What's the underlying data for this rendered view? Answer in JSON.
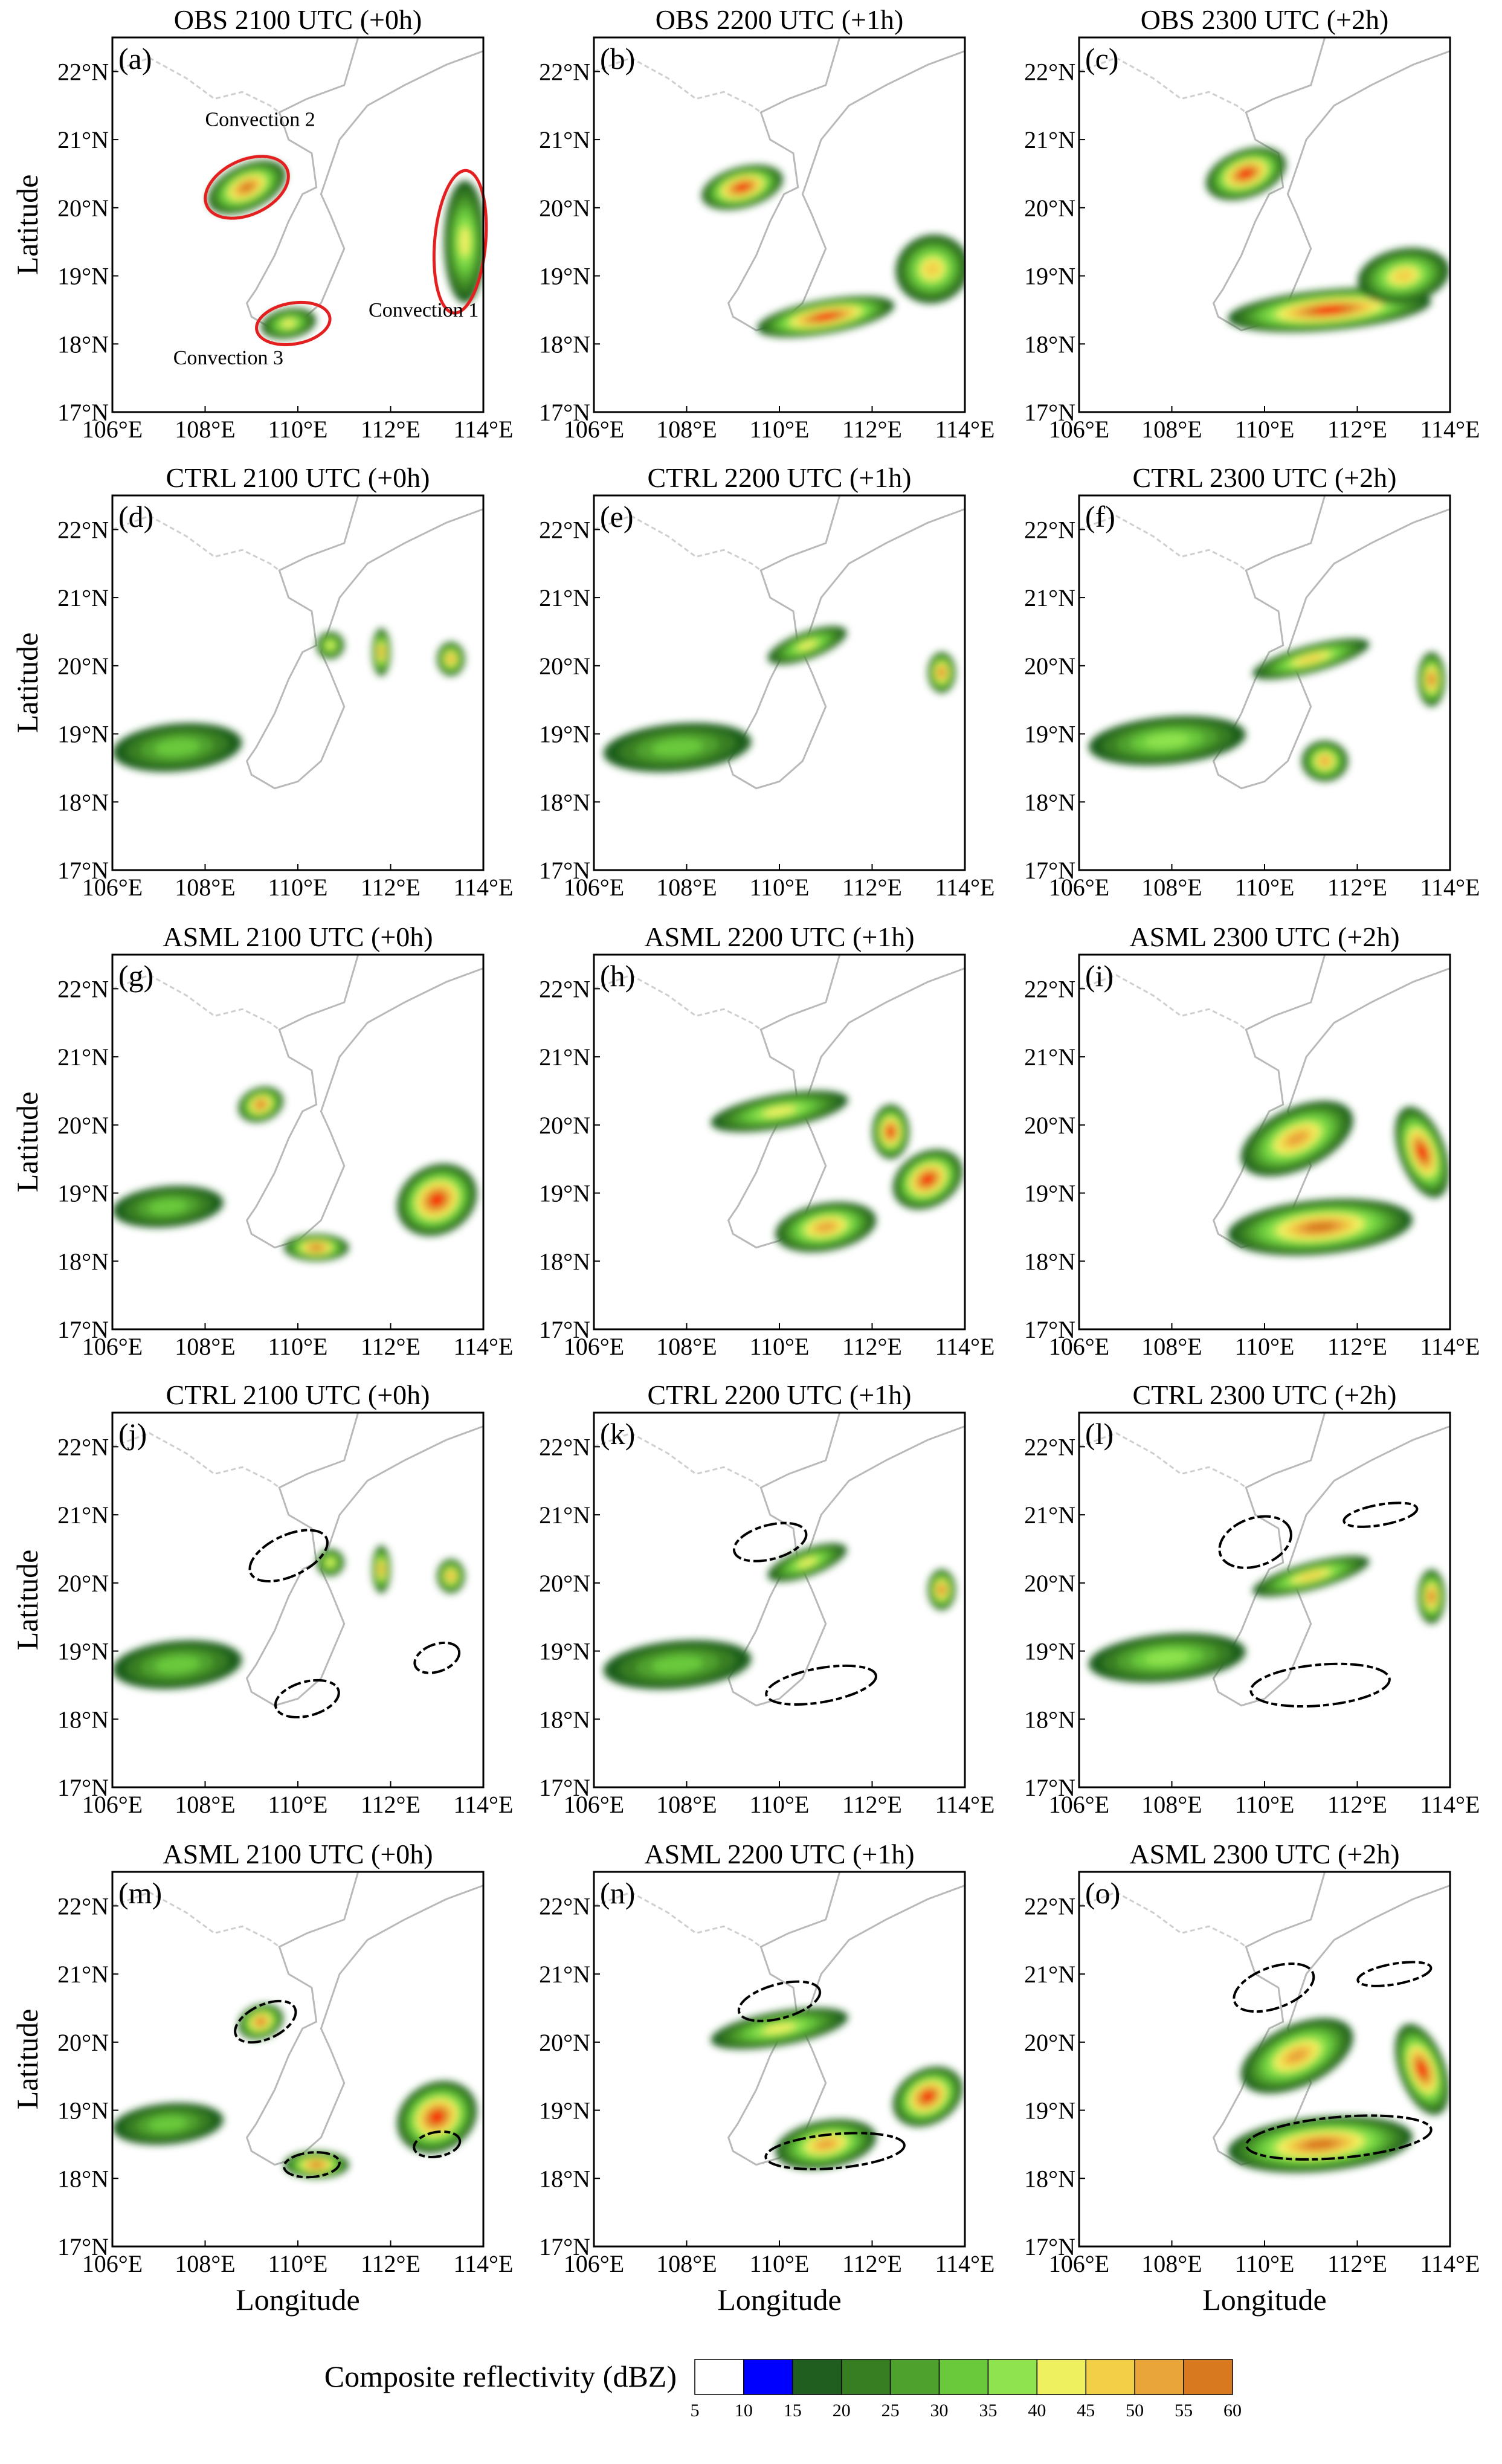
{
  "colorbar": {
    "title": "Composite reflectivity (dBZ)",
    "ticks": [
      "5",
      "10",
      "15",
      "20",
      "25",
      "30",
      "35",
      "40",
      "45",
      "50",
      "55",
      "60"
    ],
    "colors": [
      "#ffffff",
      "#0000ff",
      "#1f5e1f",
      "#377e23",
      "#4fa12d",
      "#69c93b",
      "#8ee34e",
      "#eef060",
      "#f2cf46",
      "#e9a43a",
      "#d8781f",
      "#ff0000",
      "#b83018"
    ]
  },
  "chart_data": {
    "type": "heatmap",
    "variable": "Composite reflectivity (dBZ)",
    "xlabel": "Longitude",
    "ylabel": "Latitude",
    "xlim": [
      106,
      114
    ],
    "ylim": [
      17,
      22.5
    ],
    "x_ticks": [
      "106°E",
      "108°E",
      "110°E",
      "112°E",
      "114°E"
    ],
    "y_ticks": [
      "17°N",
      "18°N",
      "19°N",
      "20°N",
      "21°N",
      "22°N"
    ],
    "panels": [
      {
        "label": "(a)",
        "title": "OBS 2100 UTC (+0h)",
        "annotations": [
          "Convection 2",
          "Convection 1",
          "Convection 3"
        ],
        "echoes": [
          {
            "lon": 108.9,
            "lat": 20.3,
            "rx": 0.9,
            "ry": 0.33,
            "rot": -25,
            "max": 50
          },
          {
            "lon": 113.6,
            "lat": 19.5,
            "rx": 0.45,
            "ry": 0.9,
            "rot": 0,
            "max": 35
          },
          {
            "lon": 109.8,
            "lat": 18.3,
            "rx": 0.6,
            "ry": 0.22,
            "rot": -10,
            "max": 35
          }
        ]
      },
      {
        "label": "(b)",
        "title": "OBS 2200 UTC (+1h)",
        "echoes": [
          {
            "lon": 109.2,
            "lat": 20.3,
            "rx": 0.9,
            "ry": 0.3,
            "rot": -15,
            "max": 55
          },
          {
            "lon": 111.0,
            "lat": 18.4,
            "rx": 1.5,
            "ry": 0.25,
            "rot": -10,
            "max": 55
          },
          {
            "lon": 113.3,
            "lat": 19.1,
            "rx": 0.8,
            "ry": 0.5,
            "rot": -20,
            "max": 40
          }
        ]
      },
      {
        "label": "(c)",
        "title": "OBS 2300 UTC (+2h)",
        "echoes": [
          {
            "lon": 109.6,
            "lat": 20.5,
            "rx": 0.9,
            "ry": 0.35,
            "rot": -20,
            "max": 55
          },
          {
            "lon": 111.4,
            "lat": 18.5,
            "rx": 2.2,
            "ry": 0.3,
            "rot": -5,
            "max": 55
          },
          {
            "lon": 113.0,
            "lat": 19.0,
            "rx": 1.0,
            "ry": 0.4,
            "rot": -10,
            "max": 40
          }
        ]
      },
      {
        "label": "(d)",
        "title": "CTRL 2100 UTC (+0h)",
        "echoes": [
          {
            "lon": 107.4,
            "lat": 18.8,
            "rx": 1.4,
            "ry": 0.35,
            "rot": -5,
            "max": 25
          },
          {
            "lon": 110.7,
            "lat": 20.3,
            "rx": 0.3,
            "ry": 0.2,
            "rot": -20,
            "max": 35
          },
          {
            "lon": 111.8,
            "lat": 20.2,
            "rx": 0.2,
            "ry": 0.35,
            "rot": 0,
            "max": 45
          },
          {
            "lon": 113.3,
            "lat": 20.1,
            "rx": 0.3,
            "ry": 0.25,
            "rot": 0,
            "max": 45
          }
        ]
      },
      {
        "label": "(e)",
        "title": "CTRL 2200 UTC (+1h)",
        "echoes": [
          {
            "lon": 107.8,
            "lat": 18.8,
            "rx": 1.6,
            "ry": 0.35,
            "rot": -5,
            "max": 25
          },
          {
            "lon": 110.6,
            "lat": 20.3,
            "rx": 0.9,
            "ry": 0.2,
            "rot": -20,
            "max": 35
          },
          {
            "lon": 113.5,
            "lat": 19.9,
            "rx": 0.3,
            "ry": 0.3,
            "rot": 0,
            "max": 50
          }
        ]
      },
      {
        "label": "(f)",
        "title": "CTRL 2300 UTC (+2h)",
        "echoes": [
          {
            "lon": 107.9,
            "lat": 18.9,
            "rx": 1.7,
            "ry": 0.35,
            "rot": -5,
            "max": 30
          },
          {
            "lon": 111.0,
            "lat": 20.1,
            "rx": 1.3,
            "ry": 0.2,
            "rot": -15,
            "max": 40
          },
          {
            "lon": 113.6,
            "lat": 19.8,
            "rx": 0.3,
            "ry": 0.4,
            "rot": 0,
            "max": 50
          },
          {
            "lon": 111.3,
            "lat": 18.6,
            "rx": 0.5,
            "ry": 0.3,
            "rot": 0,
            "max": 45
          }
        ]
      },
      {
        "label": "(g)",
        "title": "ASML 2100 UTC (+0h)",
        "echoes": [
          {
            "lon": 107.2,
            "lat": 18.8,
            "rx": 1.2,
            "ry": 0.3,
            "rot": -5,
            "max": 25
          },
          {
            "lon": 109.2,
            "lat": 20.3,
            "rx": 0.5,
            "ry": 0.25,
            "rot": -20,
            "max": 50
          },
          {
            "lon": 110.4,
            "lat": 18.2,
            "rx": 0.7,
            "ry": 0.2,
            "rot": 0,
            "max": 50
          },
          {
            "lon": 113.0,
            "lat": 18.9,
            "rx": 0.9,
            "ry": 0.5,
            "rot": -30,
            "max": 55
          }
        ]
      },
      {
        "label": "(h)",
        "title": "ASML 2200 UTC (+1h)",
        "echoes": [
          {
            "lon": 110.0,
            "lat": 20.2,
            "rx": 1.5,
            "ry": 0.25,
            "rot": -10,
            "max": 35
          },
          {
            "lon": 111.0,
            "lat": 18.5,
            "rx": 1.1,
            "ry": 0.35,
            "rot": -10,
            "max": 45
          },
          {
            "lon": 113.2,
            "lat": 19.2,
            "rx": 0.8,
            "ry": 0.4,
            "rot": -30,
            "max": 55
          },
          {
            "lon": 112.4,
            "lat": 19.9,
            "rx": 0.4,
            "ry": 0.4,
            "rot": 0,
            "max": 55
          }
        ]
      },
      {
        "label": "(i)",
        "title": "ASML 2300 UTC (+2h)",
        "echoes": [
          {
            "lon": 110.7,
            "lat": 19.8,
            "rx": 1.3,
            "ry": 0.45,
            "rot": -25,
            "max": 45
          },
          {
            "lon": 111.2,
            "lat": 18.5,
            "rx": 2.0,
            "ry": 0.4,
            "rot": -5,
            "max": 50
          },
          {
            "lon": 113.4,
            "lat": 19.6,
            "rx": 0.5,
            "ry": 0.7,
            "rot": -20,
            "max": 55
          }
        ]
      },
      {
        "label": "(j)",
        "title": "CTRL 2100 UTC (+0h)",
        "has_contour": true,
        "echoes": [
          {
            "lon": 107.4,
            "lat": 18.8,
            "rx": 1.4,
            "ry": 0.35,
            "rot": -5,
            "max": 25
          },
          {
            "lon": 110.7,
            "lat": 20.3,
            "rx": 0.3,
            "ry": 0.2,
            "rot": -20,
            "max": 35
          },
          {
            "lon": 111.8,
            "lat": 20.2,
            "rx": 0.2,
            "ry": 0.35,
            "rot": 0,
            "max": 45
          },
          {
            "lon": 113.3,
            "lat": 20.1,
            "rx": 0.3,
            "ry": 0.25,
            "rot": 0,
            "max": 45
          }
        ],
        "contours": [
          {
            "lon": 109.8,
            "lat": 20.4,
            "rx": 0.9,
            "ry": 0.3,
            "rot": -25
          },
          {
            "lon": 110.2,
            "lat": 18.3,
            "rx": 0.7,
            "ry": 0.25,
            "rot": -15
          },
          {
            "lon": 113.0,
            "lat": 18.9,
            "rx": 0.5,
            "ry": 0.2,
            "rot": -20
          }
        ]
      },
      {
        "label": "(k)",
        "title": "CTRL 2200 UTC (+1h)",
        "has_contour": true,
        "echoes": [
          {
            "lon": 107.8,
            "lat": 18.8,
            "rx": 1.6,
            "ry": 0.35,
            "rot": -5,
            "max": 25
          },
          {
            "lon": 110.6,
            "lat": 20.3,
            "rx": 0.9,
            "ry": 0.2,
            "rot": -20,
            "max": 35
          },
          {
            "lon": 113.5,
            "lat": 19.9,
            "rx": 0.3,
            "ry": 0.3,
            "rot": 0,
            "max": 50
          }
        ],
        "contours": [
          {
            "lon": 109.8,
            "lat": 20.6,
            "rx": 0.8,
            "ry": 0.25,
            "rot": -15
          },
          {
            "lon": 110.9,
            "lat": 18.5,
            "rx": 1.2,
            "ry": 0.25,
            "rot": -10
          }
        ]
      },
      {
        "label": "(l)",
        "title": "CTRL 2300 UTC (+2h)",
        "has_contour": true,
        "echoes": [
          {
            "lon": 107.9,
            "lat": 18.9,
            "rx": 1.7,
            "ry": 0.35,
            "rot": -5,
            "max": 30
          },
          {
            "lon": 111.0,
            "lat": 20.1,
            "rx": 1.3,
            "ry": 0.2,
            "rot": -15,
            "max": 40
          },
          {
            "lon": 113.6,
            "lat": 19.8,
            "rx": 0.3,
            "ry": 0.4,
            "rot": 0,
            "max": 50
          }
        ],
        "contours": [
          {
            "lon": 109.8,
            "lat": 20.6,
            "rx": 0.8,
            "ry": 0.35,
            "rot": -20
          },
          {
            "lon": 111.2,
            "lat": 18.5,
            "rx": 1.5,
            "ry": 0.3,
            "rot": -5
          },
          {
            "lon": 112.5,
            "lat": 21.0,
            "rx": 0.8,
            "ry": 0.15,
            "rot": -10
          }
        ]
      },
      {
        "label": "(m)",
        "title": "ASML 2100 UTC (+0h)",
        "has_contour": true,
        "echoes": [
          {
            "lon": 107.2,
            "lat": 18.8,
            "rx": 1.2,
            "ry": 0.3,
            "rot": -5,
            "max": 25
          },
          {
            "lon": 109.2,
            "lat": 20.3,
            "rx": 0.5,
            "ry": 0.25,
            "rot": -20,
            "max": 50
          },
          {
            "lon": 110.4,
            "lat": 18.2,
            "rx": 0.7,
            "ry": 0.2,
            "rot": 0,
            "max": 50
          },
          {
            "lon": 113.0,
            "lat": 18.9,
            "rx": 0.9,
            "ry": 0.5,
            "rot": -30,
            "max": 55
          }
        ],
        "contours": [
          {
            "lon": 109.3,
            "lat": 20.3,
            "rx": 0.7,
            "ry": 0.25,
            "rot": -25
          },
          {
            "lon": 110.3,
            "lat": 18.2,
            "rx": 0.6,
            "ry": 0.18,
            "rot": -5
          },
          {
            "lon": 113.0,
            "lat": 18.5,
            "rx": 0.5,
            "ry": 0.18,
            "rot": -10
          }
        ]
      },
      {
        "label": "(n)",
        "title": "ASML 2200 UTC (+1h)",
        "has_contour": true,
        "echoes": [
          {
            "lon": 110.0,
            "lat": 20.2,
            "rx": 1.5,
            "ry": 0.25,
            "rot": -10,
            "max": 35
          },
          {
            "lon": 111.0,
            "lat": 18.5,
            "rx": 1.1,
            "ry": 0.35,
            "rot": -10,
            "max": 45
          },
          {
            "lon": 113.2,
            "lat": 19.2,
            "rx": 0.8,
            "ry": 0.4,
            "rot": -30,
            "max": 55
          }
        ],
        "contours": [
          {
            "lon": 110.0,
            "lat": 20.6,
            "rx": 0.9,
            "ry": 0.25,
            "rot": -15
          },
          {
            "lon": 111.2,
            "lat": 18.4,
            "rx": 1.5,
            "ry": 0.25,
            "rot": -5
          }
        ]
      },
      {
        "label": "(o)",
        "title": "ASML 2300 UTC (+2h)",
        "has_contour": true,
        "echoes": [
          {
            "lon": 110.7,
            "lat": 19.8,
            "rx": 1.3,
            "ry": 0.45,
            "rot": -25,
            "max": 45
          },
          {
            "lon": 111.2,
            "lat": 18.5,
            "rx": 2.0,
            "ry": 0.4,
            "rot": -5,
            "max": 50
          },
          {
            "lon": 113.4,
            "lat": 19.6,
            "rx": 0.5,
            "ry": 0.7,
            "rot": -20,
            "max": 55
          }
        ],
        "contours": [
          {
            "lon": 110.2,
            "lat": 20.8,
            "rx": 0.9,
            "ry": 0.3,
            "rot": -20
          },
          {
            "lon": 111.6,
            "lat": 18.6,
            "rx": 2.0,
            "ry": 0.3,
            "rot": -5
          },
          {
            "lon": 112.8,
            "lat": 21.0,
            "rx": 0.8,
            "ry": 0.15,
            "rot": -10
          }
        ]
      }
    ]
  }
}
